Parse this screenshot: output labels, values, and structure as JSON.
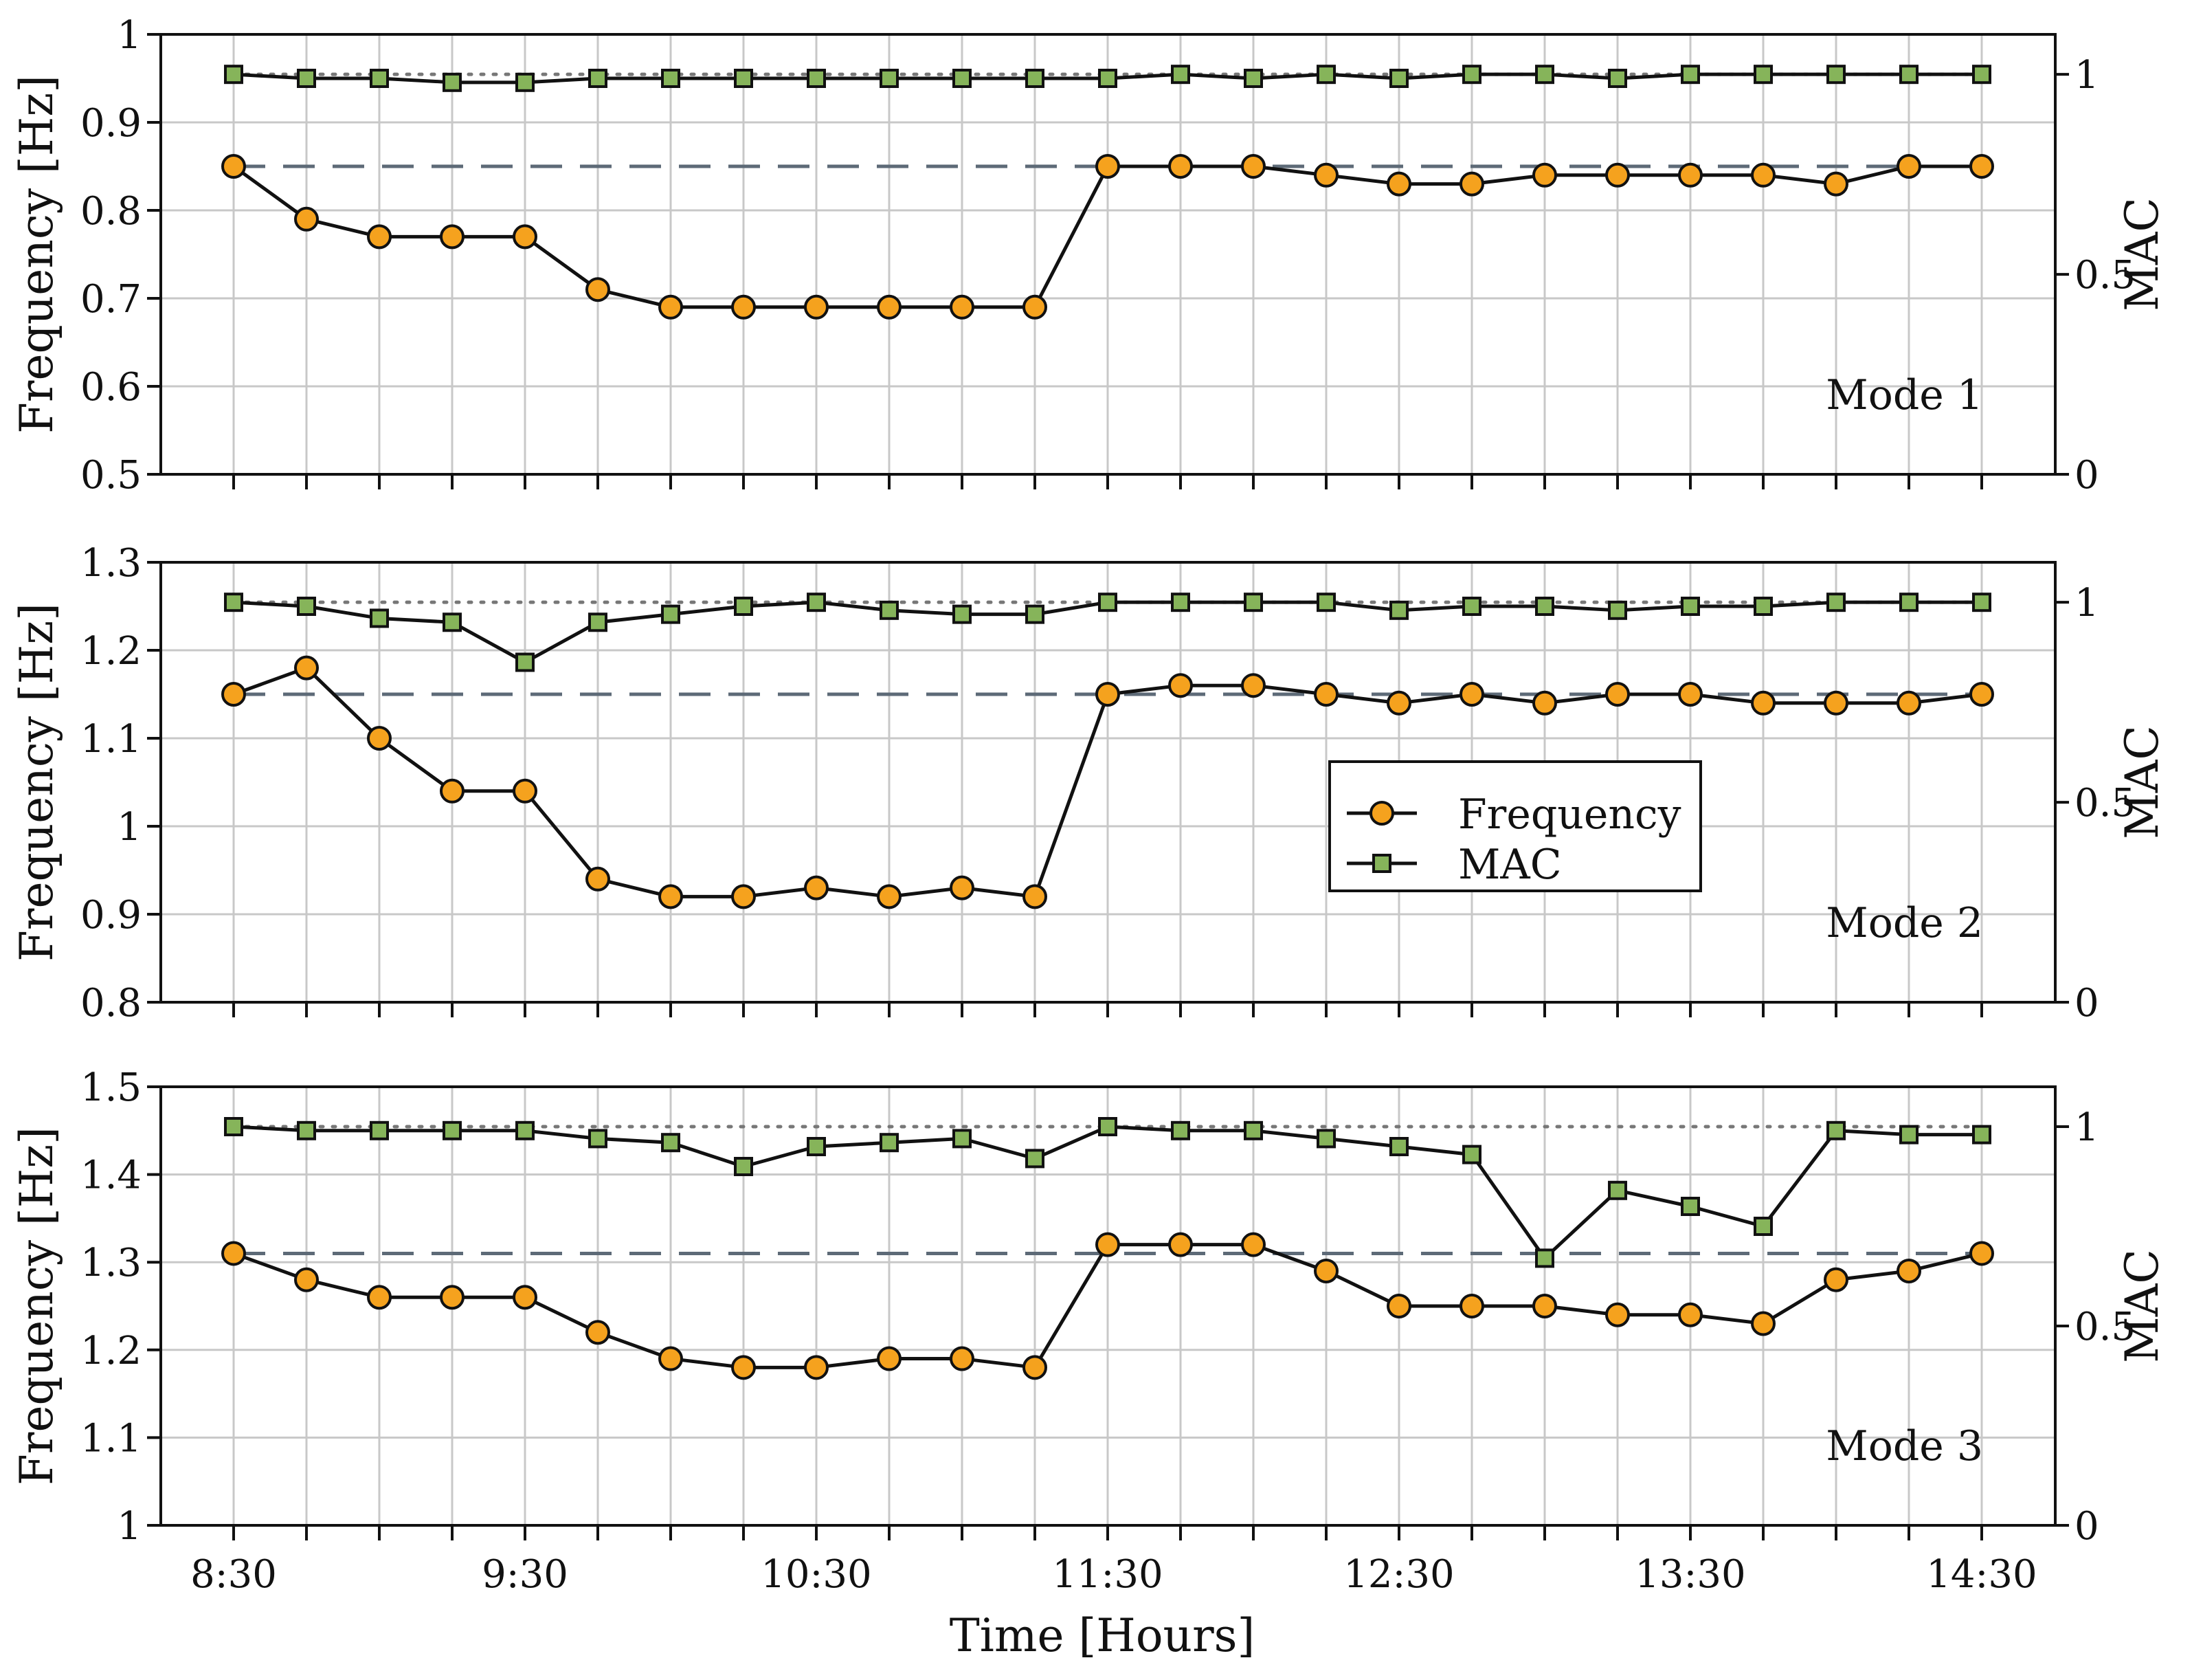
{
  "figure": {
    "xlabel": "Time [Hours]",
    "legend": {
      "placement": "center-right of middle panel",
      "entries": [
        "Frequency",
        "MAC"
      ]
    }
  },
  "colors": {
    "frequency_marker": "#f5a21e",
    "mac_marker": "#86b45a",
    "line": "#111111",
    "reference_line": "#5d6a77",
    "grid": "#c8c8c8"
  },
  "chart_data": [
    {
      "type": "line",
      "title": "Mode 1",
      "categories": [
        "8:30",
        "8:45",
        "9:00",
        "9:15",
        "9:30",
        "9:45",
        "10:00",
        "10:15",
        "10:30",
        "10:45",
        "11:00",
        "11:15",
        "11:30",
        "11:45",
        "12:00",
        "12:15",
        "12:30",
        "12:45",
        "13:00",
        "13:15",
        "13:30",
        "13:45",
        "14:00",
        "14:15",
        "14:30"
      ],
      "x_tick_labels": [
        "8:30",
        "9:30",
        "10:30",
        "11:30",
        "12:30",
        "13:30",
        "14:30"
      ],
      "xlabel": "Time [Hours]",
      "ylabel": "Frequency [Hz]",
      "y2label": "MAC",
      "ylim": [
        0.5,
        1.0
      ],
      "yticks": [
        "0.5",
        "0.6",
        "0.7",
        "0.8",
        "0.9",
        "1"
      ],
      "y2lim": [
        0,
        1.1
      ],
      "y2ticks": [
        "0",
        "0.5",
        "1"
      ],
      "frequency_reference": 0.85,
      "mac_reference": 1.0,
      "series": [
        {
          "name": "Frequency",
          "axis": "left",
          "values": [
            0.85,
            0.79,
            0.77,
            0.77,
            0.77,
            0.71,
            0.69,
            0.69,
            0.69,
            0.69,
            0.69,
            0.69,
            0.85,
            0.85,
            0.85,
            0.84,
            0.83,
            0.83,
            0.84,
            0.84,
            0.84,
            0.84,
            0.83,
            0.85,
            0.85
          ]
        },
        {
          "name": "MAC",
          "axis": "right",
          "values": [
            1.0,
            0.99,
            0.99,
            0.98,
            0.98,
            0.99,
            0.99,
            0.99,
            0.99,
            0.99,
            0.99,
            0.99,
            0.99,
            1.0,
            0.99,
            1.0,
            0.99,
            1.0,
            1.0,
            0.99,
            1.0,
            1.0,
            1.0,
            1.0,
            1.0
          ]
        }
      ]
    },
    {
      "type": "line",
      "title": "Mode 2",
      "categories": [
        "8:30",
        "8:45",
        "9:00",
        "9:15",
        "9:30",
        "9:45",
        "10:00",
        "10:15",
        "10:30",
        "10:45",
        "11:00",
        "11:15",
        "11:30",
        "11:45",
        "12:00",
        "12:15",
        "12:30",
        "12:45",
        "13:00",
        "13:15",
        "13:30",
        "13:45",
        "14:00",
        "14:15",
        "14:30"
      ],
      "x_tick_labels": [
        "8:30",
        "9:30",
        "10:30",
        "11:30",
        "12:30",
        "13:30",
        "14:30"
      ],
      "xlabel": "Time [Hours]",
      "ylabel": "Frequency [Hz]",
      "y2label": "MAC",
      "ylim": [
        0.8,
        1.3
      ],
      "yticks": [
        "0.8",
        "0.9",
        "1",
        "1.1",
        "1.2",
        "1.3"
      ],
      "y2lim": [
        0,
        1.1
      ],
      "y2ticks": [
        "0",
        "0.5",
        "1"
      ],
      "frequency_reference": 1.15,
      "mac_reference": 1.0,
      "series": [
        {
          "name": "Frequency",
          "axis": "left",
          "values": [
            1.15,
            1.18,
            1.1,
            1.04,
            1.04,
            0.94,
            0.92,
            0.92,
            0.93,
            0.92,
            0.93,
            0.92,
            1.15,
            1.16,
            1.16,
            1.15,
            1.14,
            1.15,
            1.14,
            1.15,
            1.15,
            1.14,
            1.14,
            1.14,
            1.15
          ]
        },
        {
          "name": "MAC",
          "axis": "right",
          "values": [
            1.0,
            0.99,
            0.96,
            0.95,
            0.85,
            0.95,
            0.97,
            0.99,
            1.0,
            0.98,
            0.97,
            0.97,
            1.0,
            1.0,
            1.0,
            1.0,
            0.98,
            0.99,
            0.99,
            0.98,
            0.99,
            0.99,
            1.0,
            1.0,
            1.0
          ]
        }
      ]
    },
    {
      "type": "line",
      "title": "Mode 3",
      "categories": [
        "8:30",
        "8:45",
        "9:00",
        "9:15",
        "9:30",
        "9:45",
        "10:00",
        "10:15",
        "10:30",
        "10:45",
        "11:00",
        "11:15",
        "11:30",
        "11:45",
        "12:00",
        "12:15",
        "12:30",
        "12:45",
        "13:00",
        "13:15",
        "13:30",
        "13:45",
        "14:00",
        "14:15",
        "14:30"
      ],
      "x_tick_labels": [
        "8:30",
        "9:30",
        "10:30",
        "11:30",
        "12:30",
        "13:30",
        "14:30"
      ],
      "xlabel": "Time [Hours]",
      "ylabel": "Frequency [Hz]",
      "y2label": "MAC",
      "ylim": [
        1.0,
        1.5
      ],
      "yticks": [
        "1",
        "1.1",
        "1.2",
        "1.3",
        "1.4",
        "1.5"
      ],
      "y2lim": [
        0,
        1.1
      ],
      "y2ticks": [
        "0",
        "0.5",
        "1"
      ],
      "frequency_reference": 1.31,
      "mac_reference": 1.0,
      "series": [
        {
          "name": "Frequency",
          "axis": "left",
          "values": [
            1.31,
            1.28,
            1.26,
            1.26,
            1.26,
            1.22,
            1.19,
            1.18,
            1.18,
            1.19,
            1.19,
            1.18,
            1.32,
            1.32,
            1.32,
            1.29,
            1.25,
            1.25,
            1.25,
            1.24,
            1.24,
            1.23,
            1.28,
            1.29,
            1.31
          ]
        },
        {
          "name": "MAC",
          "axis": "right",
          "values": [
            1.0,
            0.99,
            0.99,
            0.99,
            0.99,
            0.97,
            0.96,
            0.9,
            0.95,
            0.96,
            0.97,
            0.92,
            1.0,
            0.99,
            0.99,
            0.97,
            0.95,
            0.93,
            0.67,
            0.84,
            0.8,
            0.75,
            0.99,
            0.98,
            0.98
          ]
        }
      ]
    }
  ]
}
